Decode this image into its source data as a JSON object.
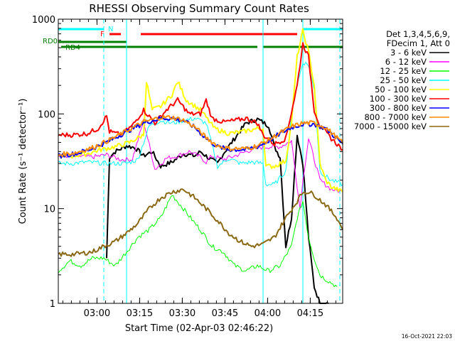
{
  "chart_data": {
    "type": "line",
    "title": "RHESSI Observing Summary Count Rates",
    "xlabel": "Start Time (02-Apr-03 02:46:22)",
    "ylabel": "Count Rate (s⁻¹ detector⁻¹)",
    "x_unit": "minutes after 02:46:22 UT",
    "xlim": [
      0,
      100
    ],
    "ylim": [
      1,
      1000
    ],
    "yscale": "log",
    "x_tick_labels": [
      "03:00",
      "03:15",
      "03:30",
      "03:45",
      "04:00",
      "04:15"
    ],
    "x_tick_minutes": [
      13.6,
      28.6,
      43.6,
      58.6,
      73.6,
      88.6
    ],
    "y_tick_labels": [
      "1",
      "10",
      "100",
      "1000"
    ],
    "y_tick_values": [
      1,
      10,
      100,
      1000
    ],
    "legend_header": [
      "Det 1,3,4,5,6,9,",
      "FDecim 1, Att 0"
    ],
    "legend_position": "right",
    "series": [
      {
        "name": "3 - 6 keV",
        "color": "#000000",
        "x": [
          17,
          18,
          20,
          24,
          27,
          30,
          33,
          36,
          40,
          44,
          48,
          50,
          53,
          56,
          58,
          62,
          66,
          70,
          74,
          76,
          78,
          80,
          82,
          84,
          86,
          88,
          90,
          92,
          95
        ],
        "y": [
          3,
          35,
          40,
          46,
          44,
          36,
          40,
          28,
          31,
          38,
          36,
          40,
          34,
          30,
          38,
          55,
          80,
          88,
          75,
          45,
          35,
          4,
          8,
          60,
          30,
          5,
          1.5,
          1,
          1
        ]
      },
      {
        "name": "6 - 12 keV",
        "color": "#ff00ff",
        "x": [
          0,
          6,
          12,
          17,
          22,
          26,
          30,
          34,
          38,
          42,
          46,
          50,
          52,
          54,
          58,
          62,
          66,
          70,
          74,
          78,
          82,
          85,
          86,
          88,
          92,
          96,
          100
        ],
        "y": [
          36,
          36,
          35,
          37,
          33,
          33,
          85,
          26,
          34,
          36,
          40,
          35,
          31,
          36,
          33,
          36,
          40,
          44,
          45,
          45,
          52,
          10,
          20,
          55,
          20,
          16,
          15
        ]
      },
      {
        "name": "12 - 25 keV",
        "color": "#00ff00",
        "x": [
          0,
          4,
          8,
          12,
          16,
          20,
          24,
          28,
          32,
          36,
          40,
          44,
          48,
          50,
          54,
          58,
          62,
          66,
          70,
          74,
          78,
          80,
          82,
          84,
          86,
          88,
          90,
          92,
          94,
          98
        ],
        "y": [
          2.2,
          2.8,
          2.5,
          3,
          3,
          2.5,
          3.5,
          5,
          6,
          8,
          14,
          10,
          7,
          6,
          4,
          3.5,
          2.5,
          2.2,
          2.5,
          2.2,
          2.5,
          3.2,
          4,
          8,
          12,
          5,
          3,
          2,
          1.8,
          1.5
        ]
      },
      {
        "name": "25 - 50 keV",
        "color": "#00ffff",
        "x": [
          0,
          5,
          10,
          17,
          20,
          24,
          28,
          32,
          36,
          40,
          44,
          48,
          52,
          56,
          60,
          64,
          68,
          72,
          73,
          76,
          80,
          82,
          84,
          86,
          88,
          90,
          92,
          94,
          96,
          100
        ],
        "y": [
          30,
          30,
          31,
          30,
          30,
          30,
          33,
          75,
          85,
          80,
          85,
          90,
          80,
          28,
          34,
          30,
          31,
          30,
          18,
          18,
          25,
          100,
          200,
          350,
          330,
          180,
          25,
          22,
          20,
          18
        ]
      },
      {
        "name": "50 - 100 keV",
        "color": "#ffff00",
        "x": [
          0,
          5,
          10,
          15,
          20,
          25,
          30,
          31,
          33,
          36,
          40,
          42,
          45,
          50,
          55,
          60,
          65,
          70,
          72,
          73,
          76,
          80,
          82,
          84,
          86,
          88,
          90,
          92,
          94,
          96,
          100
        ],
        "y": [
          36,
          36,
          38,
          42,
          45,
          50,
          60,
          220,
          110,
          120,
          160,
          220,
          140,
          110,
          70,
          62,
          65,
          70,
          70,
          28,
          28,
          32,
          80,
          400,
          750,
          450,
          200,
          30,
          20,
          17,
          15
        ]
      },
      {
        "name": "100 - 300 keV",
        "color": "#ff0000",
        "x": [
          0,
          5,
          10,
          14,
          17,
          18,
          22,
          26,
          30,
          34,
          38,
          42,
          46,
          50,
          52,
          54,
          58,
          62,
          66,
          70,
          72,
          76,
          80,
          84,
          86,
          88,
          90,
          92,
          96,
          100
        ],
        "y": [
          60,
          60,
          62,
          70,
          95,
          65,
          60,
          75,
          110,
          80,
          110,
          140,
          100,
          100,
          140,
          90,
          82,
          85,
          90,
          80,
          60,
          48,
          55,
          200,
          550,
          400,
          110,
          75,
          55,
          42
        ]
      },
      {
        "name": "300 - 800 keV",
        "color": "#0000ff",
        "x": [
          0,
          6,
          12,
          18,
          24,
          30,
          36,
          40,
          44,
          48,
          52,
          56,
          60,
          66,
          70,
          74,
          78,
          82,
          86,
          90,
          94,
          98,
          100
        ],
        "y": [
          36,
          38,
          43,
          52,
          65,
          80,
          90,
          90,
          85,
          72,
          55,
          45,
          42,
          42,
          45,
          52,
          62,
          72,
          78,
          78,
          70,
          55,
          48
        ]
      },
      {
        "name": "800 - 7000 keV",
        "color": "#ff8c00",
        "x": [
          0,
          6,
          12,
          18,
          24,
          30,
          36,
          40,
          44,
          48,
          52,
          56,
          60,
          66,
          70,
          74,
          78,
          82,
          86,
          90,
          94,
          98,
          100
        ],
        "y": [
          37,
          39,
          44,
          53,
          66,
          82,
          92,
          92,
          86,
          73,
          56,
          46,
          43,
          43,
          46,
          53,
          63,
          73,
          80,
          80,
          72,
          56,
          49
        ]
      },
      {
        "name": "7000 - 15000 keV",
        "color": "#8b6914",
        "x": [
          0,
          6,
          12,
          16,
          20,
          24,
          28,
          32,
          36,
          40,
          44,
          48,
          52,
          56,
          60,
          64,
          68,
          72,
          76,
          80,
          84,
          86,
          88,
          90,
          94,
          98,
          100
        ],
        "y": [
          3.3,
          3.3,
          3.5,
          4,
          4.5,
          5.5,
          7,
          10,
          13,
          15,
          16,
          13,
          10,
          7.5,
          5.5,
          4.5,
          4,
          4.2,
          5,
          8,
          12,
          15,
          15,
          14,
          11,
          8,
          6
        ]
      }
    ],
    "flags": {
      "N": {
        "label": "N",
        "color": "#00ffff",
        "segments": [
          [
            0,
            16
          ],
          [
            86,
            100
          ]
        ]
      },
      "F": {
        "label": "F",
        "color": "#ff0000",
        "segments": [
          [
            18,
            22
          ],
          [
            29,
            84
          ]
        ]
      },
      "RD0": {
        "label": "RD0",
        "color": "#008000",
        "segments": [
          [
            0,
            24
          ]
        ]
      },
      "RD4": {
        "label": "RD4",
        "color": "#008000",
        "segments": [
          [
            1,
            24
          ],
          [
            24,
            51
          ],
          [
            51,
            70
          ],
          [
            72,
            100
          ]
        ]
      }
    },
    "markers": [
      {
        "x": 16,
        "style": "dashed",
        "color": "#00ffff"
      },
      {
        "x": 24,
        "style": "solid",
        "color": "#00ffff"
      },
      {
        "x": 72,
        "style": "solid",
        "color": "#00ffff"
      },
      {
        "x": 86,
        "style": "solid",
        "color": "#00ffff"
      },
      {
        "x": 99,
        "style": "dashed",
        "color": "#00ffff"
      }
    ],
    "grid": false
  },
  "footer": {
    "timestamp": "16-Oct-2021 22:03"
  }
}
